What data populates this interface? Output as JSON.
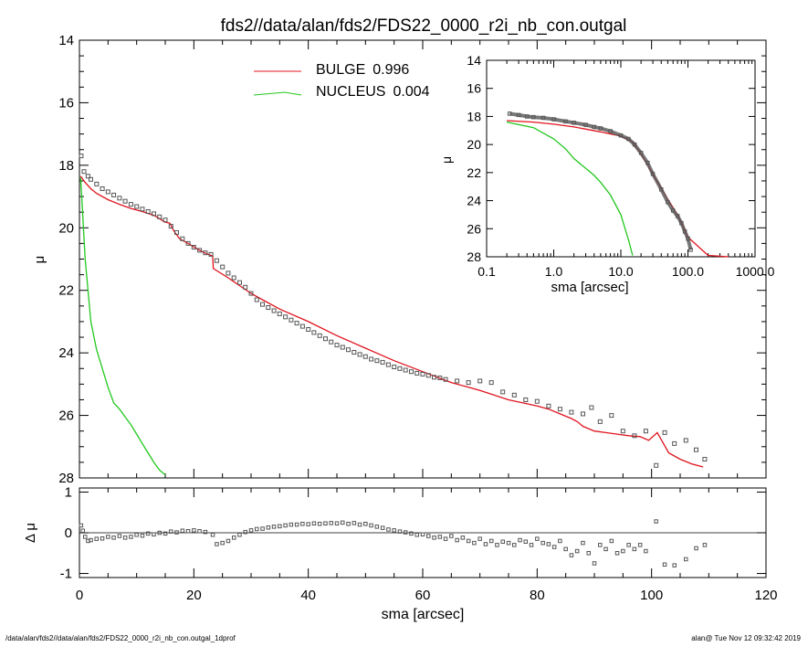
{
  "title": "fds2//data/alan/fds2/FDS22_0000_r2i_nb_con.outgal",
  "footer_left": "/data/alan/fds2//data/alan/fds2/FDS22_0000_r2i_nb_con.outgal_1dprof",
  "footer_right": "alan@  Tue Nov 12 09:32:42 2019",
  "colors": {
    "bulge": "#e0141e",
    "nucleus": "#22c81e",
    "data": "#555555",
    "axis": "#000000"
  },
  "chart_data": [
    {
      "type": "scatter",
      "panel": "main",
      "ylabel": "μ",
      "xlim": [
        0,
        120
      ],
      "ylim": [
        28,
        14
      ],
      "y_inverted": true,
      "yticks": [
        14,
        16,
        18,
        20,
        22,
        24,
        26,
        28
      ],
      "legend": {
        "placement": "top-center",
        "entries": [
          {
            "name": "BULGE",
            "value": "0.996",
            "color": "#e0141e"
          },
          {
            "name": "NUCLEUS",
            "value": "0.004",
            "color": "#22c81e"
          }
        ]
      },
      "series": [
        {
          "name": "BULGE",
          "kind": "line",
          "color": "#e0141e",
          "x": [
            0.2,
            1,
            2,
            3,
            5,
            7,
            9,
            11,
            13,
            15,
            15.8,
            16.5,
            17.5,
            19,
            21,
            22.5,
            23.3,
            23.4,
            26,
            28,
            30,
            32,
            35,
            40,
            45,
            50,
            55,
            60,
            65,
            70,
            75,
            80,
            82,
            84,
            86,
            87,
            88,
            90,
            92,
            94,
            96,
            98,
            99.5,
            101,
            103,
            105,
            107,
            109
          ],
          "y": [
            18.35,
            18.55,
            18.75,
            18.9,
            19.1,
            19.25,
            19.38,
            19.48,
            19.6,
            19.82,
            19.85,
            20.1,
            20.35,
            20.5,
            20.72,
            20.85,
            20.9,
            21.3,
            21.6,
            21.85,
            22.1,
            22.3,
            22.6,
            23.0,
            23.45,
            23.85,
            24.25,
            24.6,
            24.95,
            25.2,
            25.5,
            25.7,
            25.8,
            25.95,
            26.1,
            26.2,
            26.35,
            26.5,
            26.55,
            26.6,
            26.65,
            26.68,
            26.8,
            26.55,
            27.2,
            27.4,
            27.55,
            27.65
          ]
        },
        {
          "name": "NUCLEUS",
          "kind": "line",
          "color": "#22c81e",
          "x": [
            0.2,
            0.4,
            0.7,
            1,
            1.5,
            2,
            3,
            4,
            5,
            6,
            7,
            8,
            9,
            10,
            11,
            12,
            13,
            14,
            15
          ],
          "y": [
            18.4,
            19.0,
            20.0,
            21.0,
            22.0,
            23.0,
            23.9,
            24.5,
            25.1,
            25.6,
            25.8,
            26.05,
            26.3,
            26.6,
            26.9,
            27.2,
            27.5,
            27.75,
            27.9
          ]
        },
        {
          "name": "data",
          "kind": "markers",
          "color": "#555555",
          "x": [
            0.3,
            0.8,
            1.5,
            2,
            3,
            4,
            5,
            6,
            7,
            8,
            9,
            10,
            11,
            12,
            13,
            14,
            15,
            16,
            17,
            18,
            19,
            20,
            21,
            22,
            23,
            24,
            25,
            26,
            27,
            28,
            29,
            30,
            31,
            32,
            33,
            34,
            35,
            36,
            37,
            38,
            39,
            40,
            41,
            42,
            43,
            44,
            45,
            46,
            47,
            48,
            49,
            50,
            51,
            52,
            53,
            54,
            55,
            56,
            57,
            58,
            59,
            60,
            61,
            62,
            63,
            64,
            66,
            68,
            70,
            72,
            74,
            76,
            78,
            80,
            82,
            84,
            86,
            88,
            89.5,
            91,
            93,
            95,
            97,
            99,
            100.8,
            102.3,
            104,
            106,
            107.8,
            109.3
          ],
          "y": [
            17.7,
            18.2,
            18.35,
            18.45,
            18.6,
            18.75,
            18.85,
            18.95,
            19.05,
            19.15,
            19.25,
            19.32,
            19.4,
            19.48,
            19.55,
            19.65,
            19.75,
            19.95,
            20.15,
            20.35,
            20.5,
            20.62,
            20.72,
            20.8,
            20.85,
            21.05,
            21.25,
            21.45,
            21.6,
            21.75,
            21.9,
            22.1,
            22.3,
            22.45,
            22.55,
            22.65,
            22.75,
            22.85,
            22.95,
            23.05,
            23.15,
            23.25,
            23.35,
            23.45,
            23.55,
            23.65,
            23.75,
            23.82,
            23.9,
            23.98,
            24.05,
            24.12,
            24.2,
            24.25,
            24.3,
            24.38,
            24.45,
            24.5,
            24.55,
            24.6,
            24.65,
            24.68,
            24.72,
            24.78,
            24.8,
            24.85,
            24.9,
            24.95,
            24.9,
            24.95,
            25.25,
            25.35,
            25.5,
            25.55,
            25.7,
            25.8,
            25.9,
            25.95,
            25.75,
            26.2,
            26.0,
            26.5,
            26.65,
            26.5,
            27.6,
            26.55,
            26.9,
            26.8,
            27.1,
            27.4
          ]
        }
      ]
    },
    {
      "type": "scatter",
      "panel": "residual",
      "xlabel": "sma [arcsec]",
      "ylabel": "Δ μ",
      "xlim": [
        0,
        120
      ],
      "ylim": [
        -1.1,
        1.1
      ],
      "xticks": [
        0,
        20,
        40,
        60,
        80,
        100,
        120
      ],
      "yticks": [
        -1,
        0,
        1
      ],
      "zero_line": true,
      "series": [
        {
          "name": "residual",
          "kind": "markers",
          "color": "#555555",
          "x": [
            0.3,
            0.6,
            1,
            1.5,
            2,
            3,
            4,
            5,
            6,
            7,
            8,
            9,
            10,
            11,
            12,
            13,
            14,
            15,
            16,
            17,
            18,
            19,
            20,
            21,
            22,
            23.3,
            24,
            25,
            26,
            27,
            28,
            29,
            30,
            31,
            32,
            33,
            34,
            35,
            36,
            37,
            38,
            39,
            40,
            41,
            42,
            43,
            44,
            45,
            46,
            47,
            48,
            49,
            50,
            51,
            52,
            53,
            54,
            55,
            56,
            57,
            58,
            59,
            60,
            61,
            62,
            63,
            64,
            65,
            66,
            67,
            68,
            69,
            70,
            71,
            72,
            73,
            74,
            75,
            76,
            77,
            78,
            79,
            80,
            81,
            82,
            83,
            84,
            85,
            86,
            87,
            88,
            89,
            90,
            91,
            92,
            93,
            94,
            95,
            96,
            97,
            98,
            99,
            100.8,
            102.3,
            104,
            106,
            107.8,
            109.3
          ],
          "y": [
            0.18,
            0.05,
            -0.1,
            -0.2,
            -0.18,
            -0.15,
            -0.14,
            -0.1,
            -0.12,
            -0.08,
            -0.12,
            -0.1,
            -0.05,
            -0.07,
            -0.02,
            -0.04,
            0.0,
            -0.02,
            0.03,
            0.01,
            0.05,
            0.04,
            0.06,
            0.04,
            0.02,
            -0.05,
            -0.28,
            -0.25,
            -0.2,
            -0.12,
            -0.05,
            0.02,
            0.06,
            0.09,
            0.1,
            0.13,
            0.15,
            0.16,
            0.18,
            0.2,
            0.2,
            0.22,
            0.21,
            0.23,
            0.22,
            0.23,
            0.24,
            0.23,
            0.25,
            0.22,
            0.24,
            0.2,
            0.22,
            0.18,
            0.15,
            0.12,
            0.08,
            0.06,
            0.03,
            0.01,
            -0.02,
            -0.05,
            -0.04,
            -0.08,
            -0.12,
            -0.1,
            -0.15,
            -0.08,
            -0.18,
            -0.12,
            -0.2,
            -0.25,
            -0.15,
            -0.28,
            -0.2,
            -0.3,
            -0.22,
            -0.25,
            -0.3,
            -0.18,
            -0.22,
            -0.3,
            -0.15,
            -0.25,
            -0.28,
            -0.35,
            -0.2,
            -0.4,
            -0.55,
            -0.45,
            -0.25,
            -0.5,
            -0.75,
            -0.3,
            -0.4,
            -0.2,
            -0.5,
            -0.45,
            -0.3,
            -0.4,
            -0.3,
            -0.45,
            0.28,
            -0.78,
            -0.8,
            -0.65,
            -0.38,
            -0.3
          ]
        }
      ]
    },
    {
      "type": "scatter",
      "panel": "inset",
      "xlabel": "sma [arcsec]",
      "ylabel": "μ",
      "x_scale": "log",
      "xlim": [
        0.1,
        1000
      ],
      "ylim": [
        28,
        14
      ],
      "y_inverted": true,
      "xticks": [
        0.1,
        1,
        10,
        100,
        1000
      ],
      "xtick_labels": [
        "0.1",
        "1.0",
        "10.0",
        "100.0",
        "1000.0"
      ],
      "yticks": [
        14,
        16,
        18,
        20,
        22,
        24,
        26,
        28
      ],
      "series": [
        {
          "name": "BULGE",
          "kind": "line",
          "color": "#e0141e",
          "x": [
            0.2,
            0.5,
            1,
            2,
            3,
            5,
            7,
            10,
            15,
            20,
            30,
            50,
            70,
            100,
            200,
            400
          ],
          "y": [
            18.3,
            18.4,
            18.55,
            18.75,
            18.9,
            19.1,
            19.25,
            19.4,
            19.8,
            20.7,
            22.1,
            23.9,
            25.0,
            26.6,
            27.9,
            28.0
          ]
        },
        {
          "name": "NUCLEUS",
          "kind": "line",
          "color": "#22c81e",
          "x": [
            0.2,
            0.5,
            1,
            1.5,
            2,
            3,
            4,
            5,
            7,
            10,
            13,
            15
          ],
          "y": [
            18.4,
            18.8,
            19.6,
            20.3,
            21.0,
            21.7,
            22.2,
            22.7,
            23.6,
            25.0,
            26.8,
            27.9
          ]
        },
        {
          "name": "data",
          "kind": "markers",
          "color": "#555555",
          "x": [
            0.22,
            0.3,
            0.4,
            0.5,
            0.7,
            1,
            1.5,
            2,
            3,
            4,
            5,
            7,
            10,
            13,
            16,
            20,
            25,
            30,
            40,
            50,
            60,
            70,
            80,
            90,
            100,
            110
          ],
          "y": [
            17.8,
            17.9,
            18.0,
            18.05,
            18.1,
            18.2,
            18.35,
            18.45,
            18.6,
            18.75,
            18.85,
            19.05,
            19.35,
            19.6,
            20.0,
            20.6,
            21.3,
            22.1,
            23.2,
            24.1,
            24.7,
            25.1,
            25.6,
            26.2,
            26.7,
            27.5
          ]
        }
      ]
    }
  ]
}
